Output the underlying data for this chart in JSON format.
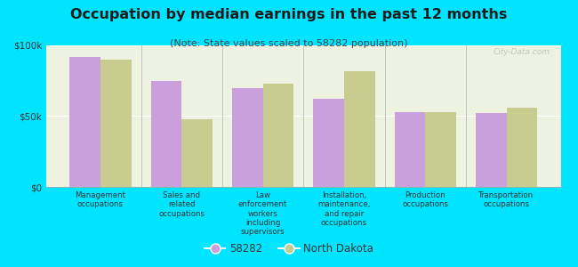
{
  "title": "Occupation by median earnings in the past 12 months",
  "subtitle": "(Note: State values scaled to 58282 population)",
  "categories": [
    "Management\noccupations",
    "Sales and\nrelated\noccupations",
    "Law\nenforcement\nworkers\nincluding\nsupervisors",
    "Installation,\nmaintenance,\nand repair\noccupations",
    "Production\noccupations",
    "Transportation\noccupations"
  ],
  "values_58282": [
    92000,
    75000,
    70000,
    62000,
    53000,
    52000
  ],
  "values_nd": [
    90000,
    48000,
    73000,
    82000,
    53000,
    56000
  ],
  "color_58282": "#c9a0dc",
  "color_nd": "#c8cc8f",
  "background_outer": "#00e5ff",
  "background_plot": "#eef2e0",
  "ylim": [
    0,
    100000
  ],
  "yticks": [
    0,
    50000,
    100000
  ],
  "ytick_labels": [
    "$0",
    "$50k",
    "$100k"
  ],
  "legend_label_1": "58282",
  "legend_label_2": "North Dakota",
  "bar_width": 0.38,
  "title_fontsize": 11.5,
  "subtitle_fontsize": 8,
  "watermark": "City-Data.com"
}
